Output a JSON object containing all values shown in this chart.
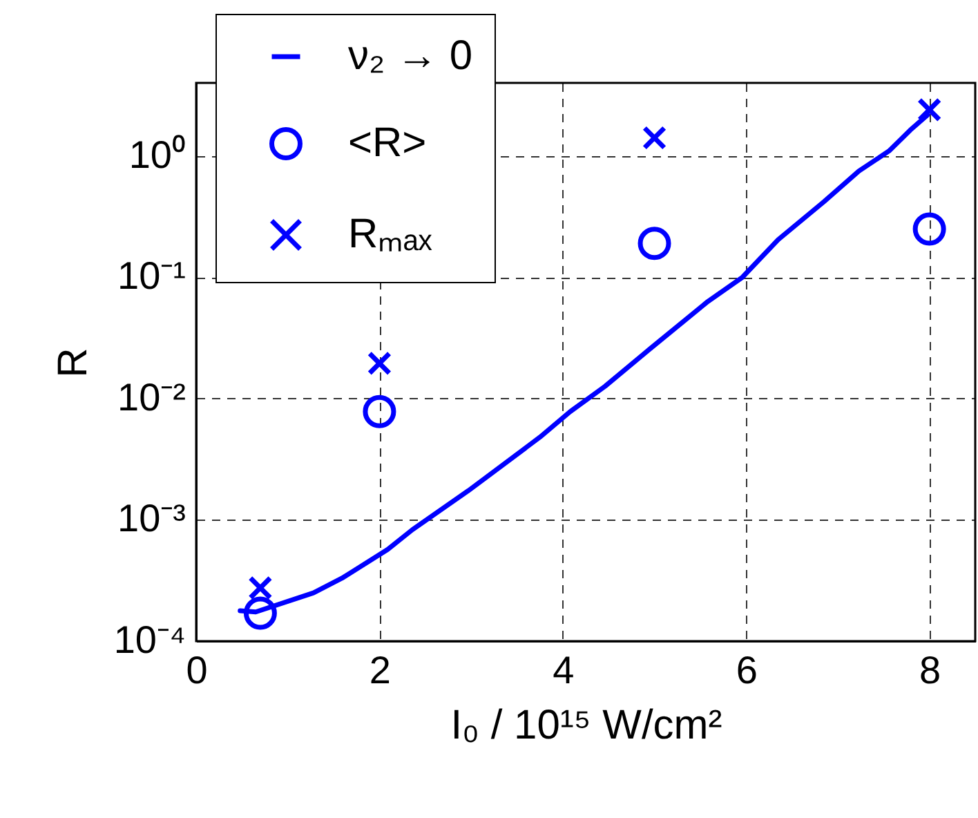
{
  "chart_data": {
    "type": "line",
    "xlabel": "I₀ / 10¹⁵ W/cm²",
    "ylabel": "R",
    "log": "y",
    "grid": true,
    "legend": "top left",
    "xlim": [
      0,
      8.5
    ],
    "xticks": [
      0,
      2,
      4,
      6,
      8
    ],
    "ylim": [
      0.0001,
      4
    ],
    "yticks": [
      {
        "value": 0.0001,
        "label": "10⁻⁴"
      },
      {
        "value": 0.001,
        "label": "10⁻³"
      },
      {
        "value": 0.01,
        "label": "10⁻²"
      },
      {
        "value": 0.1,
        "label": "10⁻¹"
      },
      {
        "value": 1,
        "label": "10⁰"
      }
    ],
    "series": [
      {
        "name": "ν₂ → 0",
        "type": "line",
        "color": "#0000ff",
        "line_style": "solid",
        "marker": "none",
        "x": [
          0.48,
          0.65,
          1.28,
          1.59,
          2.09,
          2.36,
          2.97,
          3.75,
          4.08,
          4.46,
          4.96,
          5.57,
          5.96,
          6.35,
          6.85,
          7.23,
          7.56,
          7.79,
          7.98
        ],
        "values": [
          0.000178,
          0.000174,
          0.00025,
          0.00033,
          0.00057,
          0.00083,
          0.00174,
          0.0048,
          0.0078,
          0.0126,
          0.026,
          0.062,
          0.1,
          0.204,
          0.42,
          0.75,
          1.1,
          1.63,
          2.18
        ]
      },
      {
        "name": "<R>",
        "type": "scatter",
        "color": "#0000ff",
        "marker": "circle",
        "x": [
          0.7,
          2,
          5,
          8
        ],
        "values": [
          0.00017,
          0.0078,
          0.19,
          0.25
        ]
      },
      {
        "name": "Rₘₐₓ",
        "type": "scatter",
        "color": "#0000ff",
        "marker": "cross",
        "x": [
          0.7,
          2,
          5,
          8
        ],
        "values": [
          0.000275,
          0.0195,
          1.41,
          2.4
        ]
      }
    ]
  }
}
